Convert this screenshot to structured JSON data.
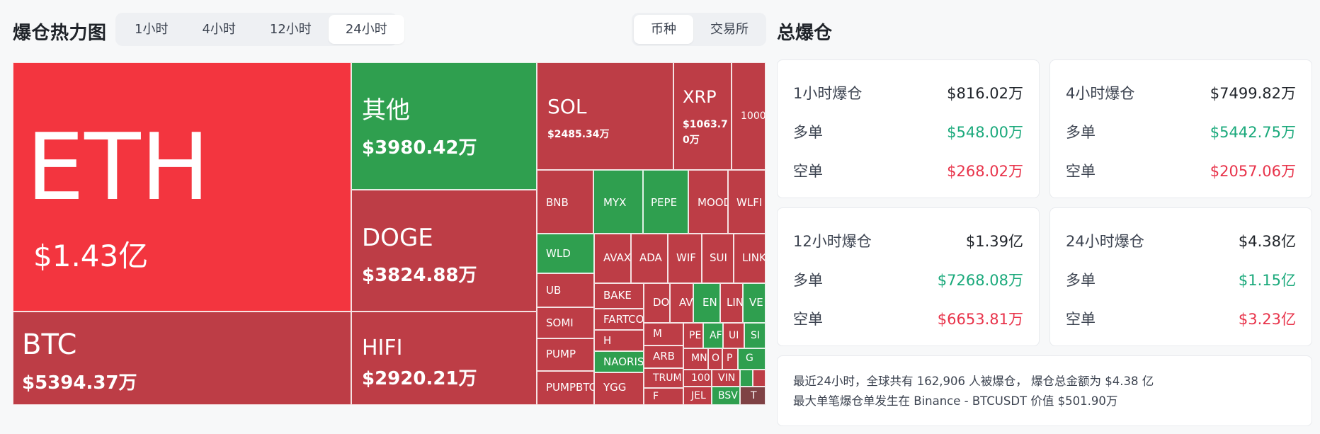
{
  "heatmap": {
    "title": "爆仓热力图",
    "time_tabs": [
      "1小时",
      "4小时",
      "12小时",
      "24小时"
    ],
    "active_time_tab": "24小时",
    "view_tabs": [
      "币种",
      "交易所"
    ],
    "active_view_tab": "币种",
    "colors": {
      "red": "#f3353f",
      "darkred": "#bd3d46",
      "green": "#2f9f4f",
      "dark": "#7f4245"
    },
    "cells": [
      {
        "name": "ETH",
        "amount": "$1.43亿"
      },
      {
        "name": "BTC",
        "amount": "$5394.37万"
      },
      {
        "name": "其他",
        "amount": "$3980.42万"
      },
      {
        "name": "DOGE",
        "amount": "$3824.88万"
      },
      {
        "name": "HIFI",
        "amount": "$2920.21万"
      },
      {
        "name": "SOL",
        "amount": "$2485.34万"
      },
      {
        "name": "XRP",
        "amount": "$1063.70万"
      },
      {
        "name": "1000",
        "amount": ""
      },
      {
        "name": "BNB",
        "amount": ""
      },
      {
        "name": "MYX",
        "amount": ""
      },
      {
        "name": "PEPE",
        "amount": ""
      },
      {
        "name": "MOOD",
        "amount": ""
      },
      {
        "name": "WLFI",
        "amount": ""
      },
      {
        "name": "WLD",
        "amount": ""
      },
      {
        "name": "UB",
        "amount": ""
      },
      {
        "name": "SOMI",
        "amount": ""
      },
      {
        "name": "PUMP",
        "amount": ""
      },
      {
        "name": "PUMPBTC",
        "amount": ""
      },
      {
        "name": "AVAX",
        "amount": ""
      },
      {
        "name": "ADA",
        "amount": ""
      },
      {
        "name": "WIF",
        "amount": ""
      },
      {
        "name": "SUI",
        "amount": ""
      },
      {
        "name": "LINK",
        "amount": ""
      },
      {
        "name": "BAKE",
        "amount": ""
      },
      {
        "name": "FARTCO",
        "amount": ""
      },
      {
        "name": "H",
        "amount": ""
      },
      {
        "name": "NAORIS",
        "amount": ""
      },
      {
        "name": "YGG",
        "amount": ""
      },
      {
        "name": "DO",
        "amount": ""
      },
      {
        "name": "AV",
        "amount": ""
      },
      {
        "name": "EN",
        "amount": ""
      },
      {
        "name": "LIN",
        "amount": ""
      },
      {
        "name": "VE",
        "amount": ""
      },
      {
        "name": "M",
        "amount": ""
      },
      {
        "name": "ARB",
        "amount": ""
      },
      {
        "name": "TRUM",
        "amount": ""
      },
      {
        "name": "F",
        "amount": ""
      },
      {
        "name": "PE",
        "amount": ""
      },
      {
        "name": "AF",
        "amount": ""
      },
      {
        "name": "UI",
        "amount": ""
      },
      {
        "name": "SI",
        "amount": ""
      },
      {
        "name": "MN",
        "amount": ""
      },
      {
        "name": "O",
        "amount": ""
      },
      {
        "name": "P",
        "amount": ""
      },
      {
        "name": "G",
        "amount": ""
      },
      {
        "name": "100",
        "amount": ""
      },
      {
        "name": "VIN",
        "amount": ""
      },
      {
        "name": "JEL",
        "amount": ""
      },
      {
        "name": "BSV",
        "amount": ""
      },
      {
        "name": "",
        "amount": ""
      },
      {
        "name": "",
        "amount": ""
      },
      {
        "name": "T",
        "amount": ""
      }
    ]
  },
  "totals": {
    "title": "总爆仓",
    "long_label": "多单",
    "short_label": "空单",
    "cards": [
      {
        "label": "1小时爆仓",
        "total": "$816.02万",
        "long": "$548.00万",
        "short": "$268.02万"
      },
      {
        "label": "4小时爆仓",
        "total": "$7499.82万",
        "long": "$5442.75万",
        "short": "$2057.06万"
      },
      {
        "label": "12小时爆仓",
        "total": "$1.39亿",
        "long": "$7268.08万",
        "short": "$6653.81万"
      },
      {
        "label": "24小时爆仓",
        "total": "$4.38亿",
        "long": "$1.15亿",
        "short": "$3.23亿"
      }
    ],
    "summary_line1": "最近24小时，全球共有 162,906 人被爆仓， 爆仓总金额为 $4.38 亿",
    "summary_line2": "最大单笔爆仓单发生在 Binance - BTCUSDT 价值 $501.90万"
  }
}
